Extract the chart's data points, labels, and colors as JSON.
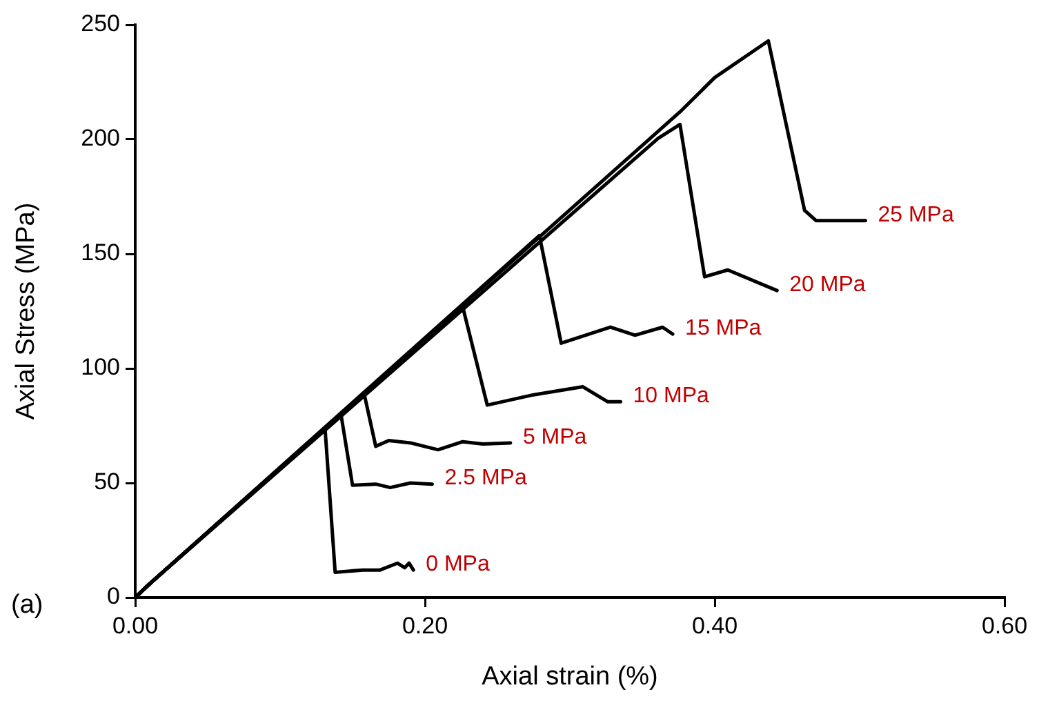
{
  "chart_data": {
    "type": "line",
    "xlabel": "Axial strain (%)",
    "ylabel": "Axial Stress (MPa)",
    "xlim": [
      0,
      0.6
    ],
    "xticks": [
      {
        "value": 0,
        "label": "0.00"
      },
      {
        "value": 0.2,
        "label": "0.20"
      },
      {
        "value": 0.4,
        "label": "0.40"
      },
      {
        "value": 0.6,
        "label": "0.60"
      }
    ],
    "ylim": [
      0,
      250
    ],
    "yticks": [
      0,
      50,
      100,
      150,
      200,
      250
    ],
    "grid": false,
    "legend": false,
    "marker": "none",
    "line_style": "solid",
    "series": [
      {
        "name": "0 MPa",
        "color": "#000000",
        "x": [
          0,
          0.01,
          0.131,
          0.138,
          0.157,
          0.169,
          0.181,
          0.186,
          0.189,
          0.192
        ],
        "values": [
          0,
          6,
          74,
          11,
          12,
          12,
          15,
          13,
          15,
          12
        ]
      },
      {
        "name": "2.5 MPa",
        "color": "#000000",
        "x": [
          0,
          0.01,
          0.142,
          0.15,
          0.166,
          0.176,
          0.19,
          0.205
        ],
        "values": [
          0,
          6,
          80,
          49,
          49.5,
          48,
          50,
          49.5
        ]
      },
      {
        "name": "5 MPa",
        "color": "#000000",
        "x": [
          0,
          0.01,
          0.158,
          0.166,
          0.175,
          0.19,
          0.209,
          0.226,
          0.24,
          0.259
        ],
        "values": [
          0,
          6,
          89,
          66,
          68.5,
          67.5,
          64.5,
          68,
          67,
          67.5
        ]
      },
      {
        "name": "10 MPa",
        "color": "#000000",
        "x": [
          0,
          0.01,
          0.226,
          0.243,
          0.275,
          0.309,
          0.326,
          0.335
        ],
        "values": [
          0,
          6,
          127,
          84,
          88.5,
          92,
          85.5,
          85.5
        ]
      },
      {
        "name": "15 MPa",
        "color": "#000000",
        "x": [
          0,
          0.01,
          0.279,
          0.294,
          0.328,
          0.345,
          0.364,
          0.371
        ],
        "values": [
          0,
          6,
          158,
          111,
          118,
          114.5,
          118,
          115
        ]
      },
      {
        "name": "20 MPa",
        "color": "#000000",
        "x": [
          0,
          0.01,
          0.361,
          0.376,
          0.393,
          0.409,
          0.443
        ],
        "values": [
          0,
          6,
          200.5,
          206.5,
          140,
          143,
          134
        ]
      },
      {
        "name": "25 MPa",
        "color": "#000000",
        "x": [
          0,
          0.01,
          0.376,
          0.4,
          0.437,
          0.462,
          0.47,
          0.504
        ],
        "values": [
          0,
          6,
          212,
          227,
          243,
          169,
          164.5,
          164.5
        ]
      }
    ],
    "annotations": [
      "(a)"
    ]
  }
}
